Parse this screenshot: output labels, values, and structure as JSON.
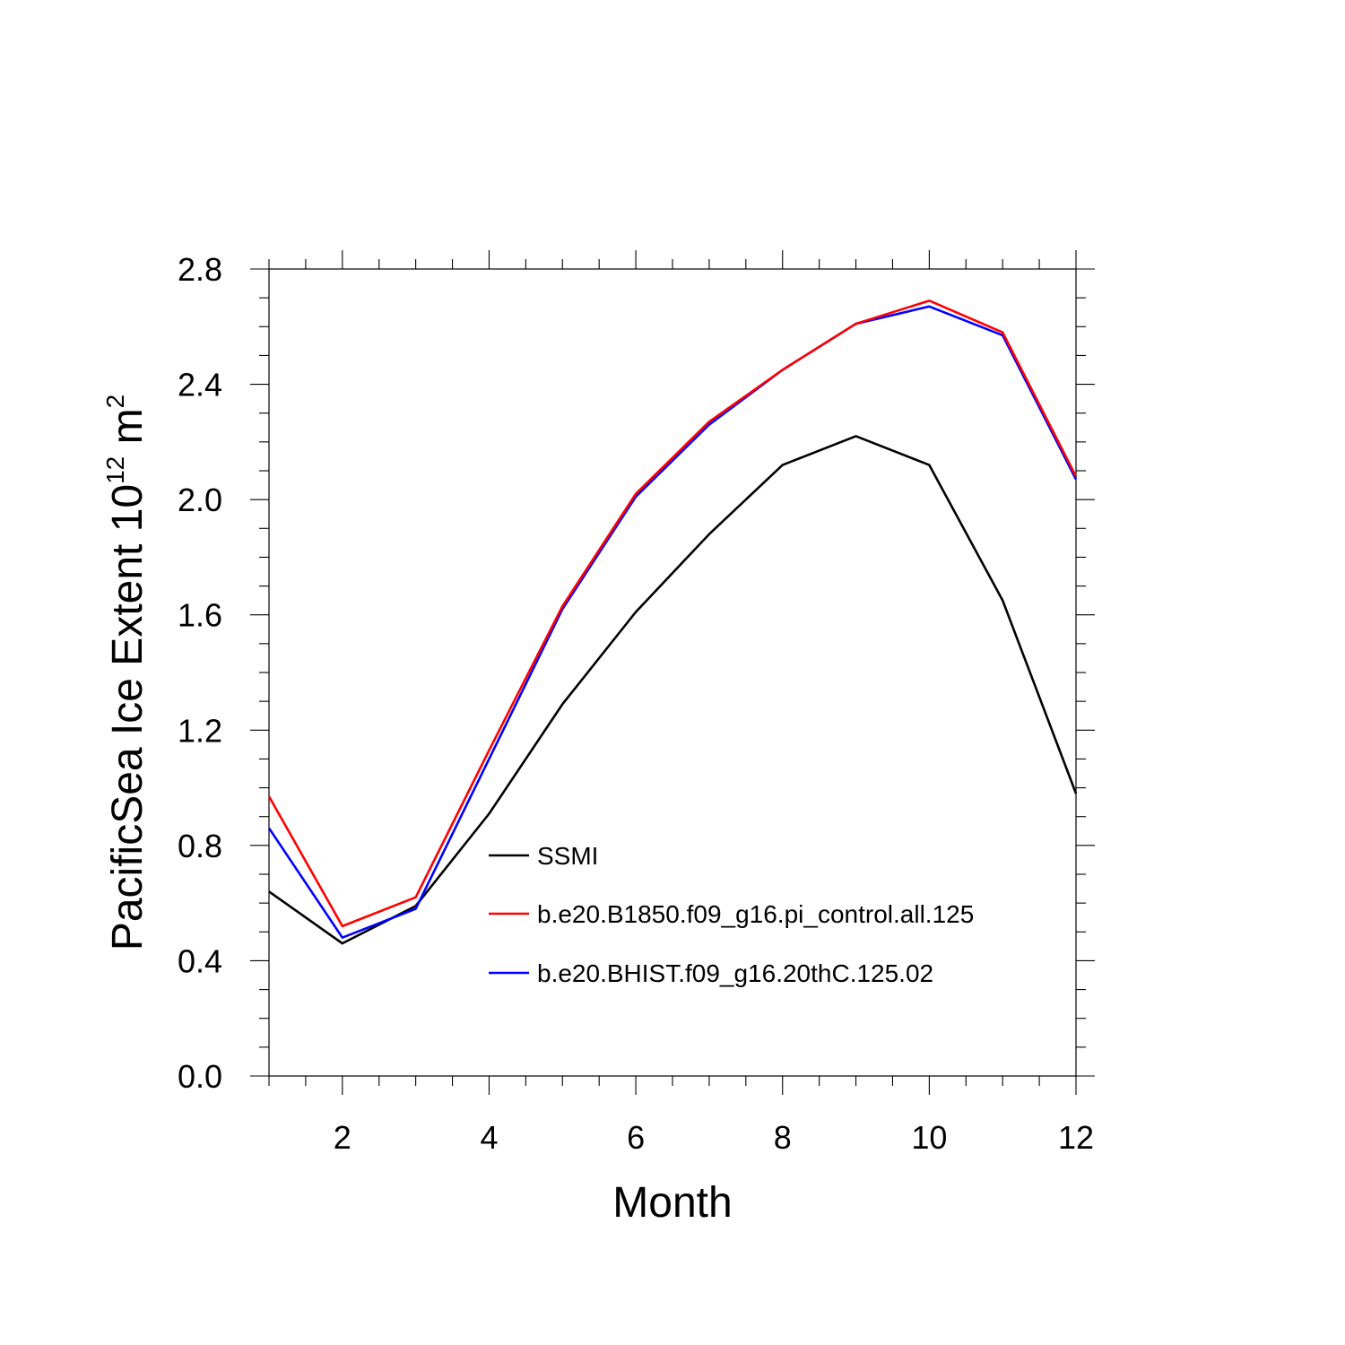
{
  "chart_data": {
    "type": "line",
    "xlabel": "Month",
    "ylabel_main": "PacificSea Ice Extent 10",
    "ylabel_exp": "12",
    "ylabel_unit": " m",
    "ylabel_unit_exp": "2",
    "xlim": [
      1,
      12
    ],
    "ylim": [
      0.0,
      2.8
    ],
    "x_ticks": [
      2,
      4,
      6,
      8,
      10,
      12
    ],
    "x_tick_labels": [
      "2",
      "4",
      "6",
      "8",
      "10",
      "12"
    ],
    "y_ticks": [
      0.0,
      0.4,
      0.8,
      1.2,
      1.6,
      2.0,
      2.4,
      2.8
    ],
    "y_tick_labels": [
      "0.0",
      "0.4",
      "0.8",
      "1.2",
      "1.6",
      "2.0",
      "2.4",
      "2.8"
    ],
    "x": [
      1,
      2,
      3,
      4,
      5,
      6,
      7,
      8,
      9,
      10,
      11,
      12
    ],
    "grid": false,
    "legend_position": "center",
    "series": [
      {
        "name": "SSMI",
        "color": "#000000",
        "values": [
          0.64,
          0.46,
          0.59,
          0.91,
          1.29,
          1.61,
          1.88,
          2.12,
          2.22,
          2.12,
          1.65,
          0.98
        ]
      },
      {
        "name": "b.e20.B1850.f09_g16.pi_control.all.125",
        "color": "#ff0000",
        "values": [
          0.97,
          0.52,
          0.62,
          1.13,
          1.63,
          2.02,
          2.27,
          2.45,
          2.61,
          2.69,
          2.58,
          2.08
        ]
      },
      {
        "name": "b.e20.BHIST.f09_g16.20thC.125.02",
        "color": "#0000ff",
        "values": [
          0.86,
          0.48,
          0.58,
          1.1,
          1.62,
          2.01,
          2.26,
          2.45,
          2.61,
          2.67,
          2.57,
          2.07
        ]
      }
    ]
  }
}
